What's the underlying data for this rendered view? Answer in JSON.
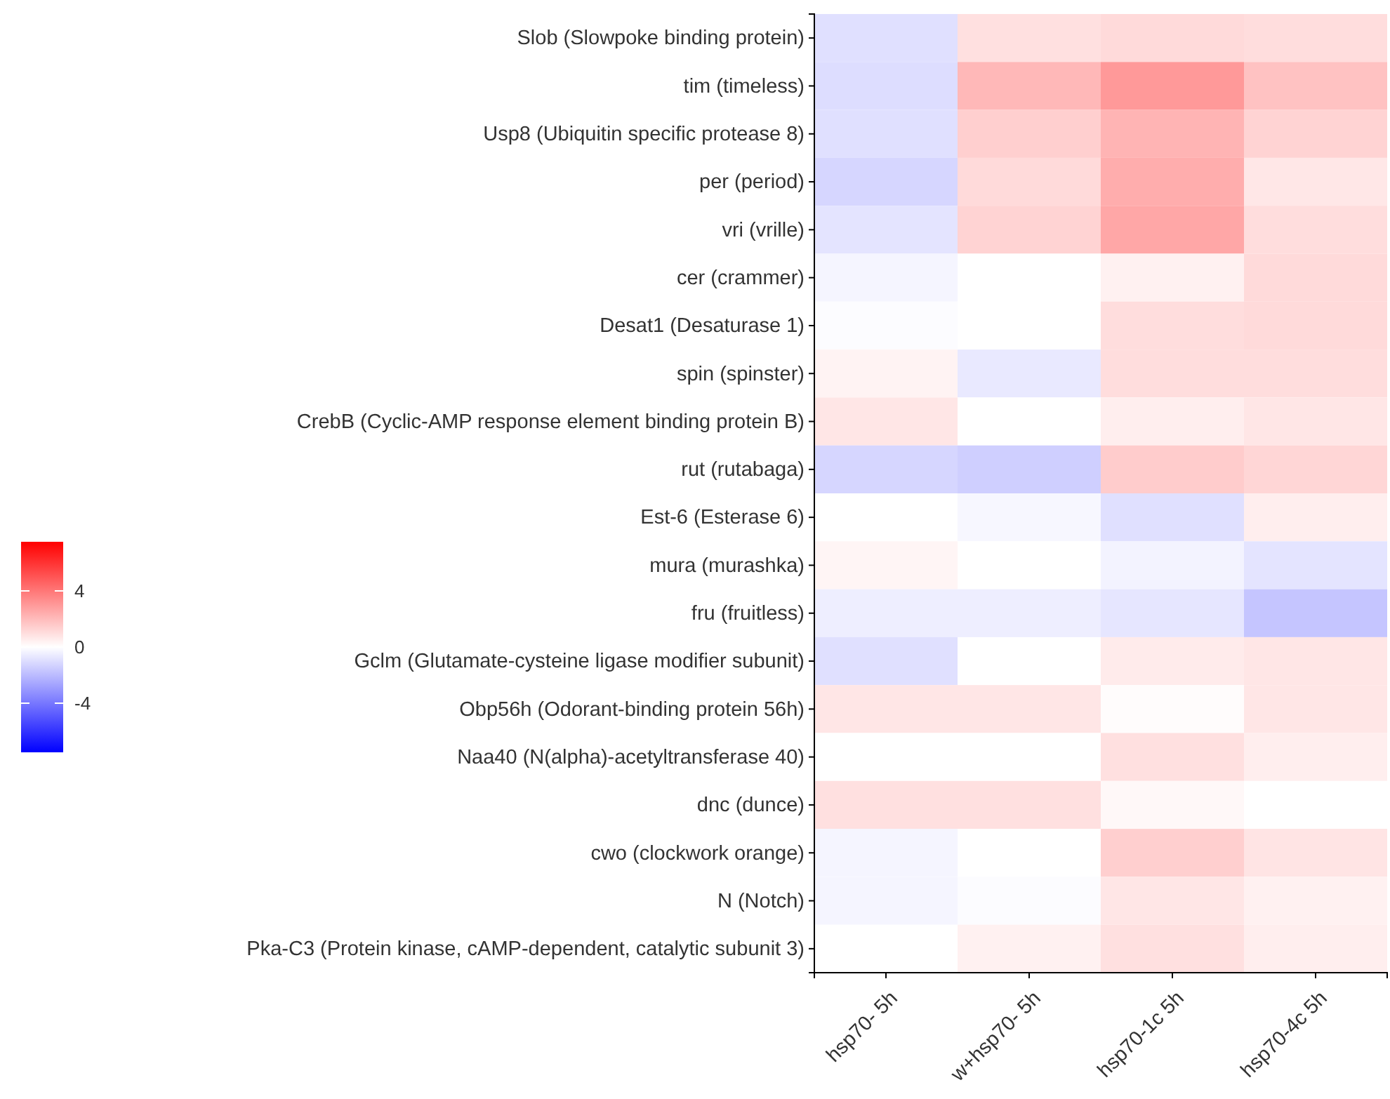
{
  "chart_data": {
    "type": "heatmap",
    "categories": [
      "hsp70- 5h",
      "w+hsp70- 5h",
      "hsp70-1c 5h",
      "hsp70-4c 5h"
    ],
    "y_categories": [
      "Slob (Slowpoke binding protein)",
      "tim (timeless)",
      "Usp8 (Ubiquitin specific protease 8)",
      "per (period)",
      "vri (vrille)",
      "cer (crammer)",
      "Desat1 (Desaturase 1)",
      "spin (spinster)",
      "CrebB (Cyclic-AMP response element binding protein B)",
      "rut (rutabaga)",
      "Est-6 (Esterase 6)",
      "mura (murashka)",
      "fru (fruitless)",
      "Gclm (Glutamate-cysteine ligase modifier subunit)",
      "Obp56h (Odorant-binding protein 56h)",
      "Naa40 (N(alpha)-acetyltransferase 40)",
      "dnc (dunce)",
      "cwo (clockwork orange)",
      "N (Notch)",
      "Pka-C3 (Protein kinase, cAMP-dependent, catalytic subunit 3)"
    ],
    "cells": [
      [
        -0.9,
        0.9,
        1.1,
        1.0
      ],
      [
        -1.0,
        2.1,
        3.0,
        1.8
      ],
      [
        -0.9,
        1.4,
        2.2,
        1.3
      ],
      [
        -1.2,
        1.1,
        2.4,
        0.7
      ],
      [
        -0.8,
        1.3,
        2.6,
        1.0
      ],
      [
        -0.3,
        0,
        0.4,
        1.1
      ],
      [
        -0.1,
        0,
        1.0,
        1.1
      ],
      [
        0.35,
        -0.65,
        1.0,
        1.0
      ],
      [
        0.75,
        0,
        0.5,
        0.75
      ],
      [
        -1.2,
        -1.4,
        1.5,
        1.2
      ],
      [
        0,
        -0.25,
        -0.9,
        0.5
      ],
      [
        0.3,
        0,
        -0.35,
        -0.8
      ],
      [
        -0.5,
        -0.5,
        -0.75,
        -1.7
      ],
      [
        -0.9,
        0,
        0.6,
        0.75
      ],
      [
        0.75,
        0.75,
        0.1,
        0.75
      ],
      [
        0,
        0,
        0.9,
        0.5
      ],
      [
        0.9,
        0.9,
        0.2,
        0
      ],
      [
        -0.3,
        0,
        1.4,
        0.8
      ],
      [
        -0.3,
        -0.1,
        0.75,
        0.4
      ],
      [
        0,
        0.4,
        0.9,
        0.5
      ]
    ],
    "clim": [
      -7.5,
      7.5
    ],
    "cticks": [
      -4,
      0,
      4
    ]
  }
}
